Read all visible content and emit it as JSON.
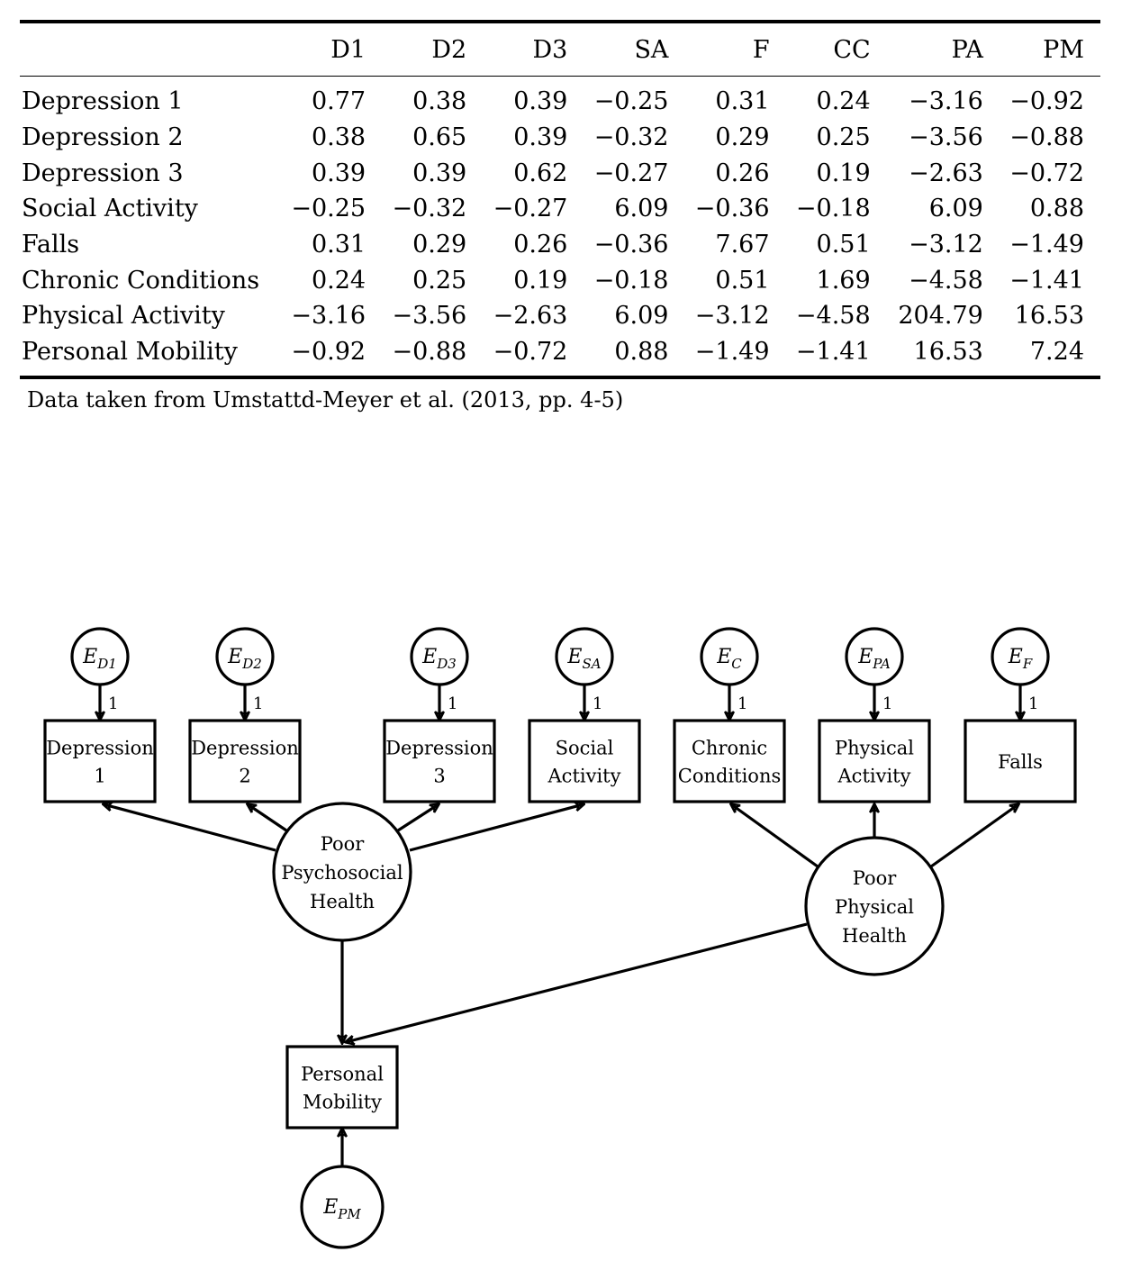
{
  "table": {
    "columns": [
      "D1",
      "D2",
      "D3",
      "SA",
      "F",
      "CC",
      "PA",
      "PM"
    ],
    "rows": [
      {
        "label": "Depression 1",
        "values": [
          "0.77",
          "0.38",
          "0.39",
          "−0.25",
          "0.31",
          "0.24",
          "−3.16",
          "−0.92"
        ]
      },
      {
        "label": "Depression 2",
        "values": [
          "0.38",
          "0.65",
          "0.39",
          "−0.32",
          "0.29",
          "0.25",
          "−3.56",
          "−0.88"
        ]
      },
      {
        "label": "Depression 3",
        "values": [
          "0.39",
          "0.39",
          "0.62",
          "−0.27",
          "0.26",
          "0.19",
          "−2.63",
          "−0.72"
        ]
      },
      {
        "label": "Social Activity",
        "values": [
          "−0.25",
          "−0.32",
          "−0.27",
          "6.09",
          "−0.36",
          "−0.18",
          "6.09",
          "0.88"
        ]
      },
      {
        "label": "Falls",
        "values": [
          "0.31",
          "0.29",
          "0.26",
          "−0.36",
          "7.67",
          "0.51",
          "−3.12",
          "−1.49"
        ]
      },
      {
        "label": "Chronic Conditions",
        "values": [
          "0.24",
          "0.25",
          "0.19",
          "−0.18",
          "0.51",
          "1.69",
          "−4.58",
          "−1.41"
        ]
      },
      {
        "label": "Physical Activity",
        "values": [
          "−3.16",
          "−3.56",
          "−2.63",
          "6.09",
          "−3.12",
          "−4.58",
          "204.79",
          "16.53"
        ]
      },
      {
        "label": "Personal Mobility",
        "values": [
          "−0.92",
          "−0.88",
          "−0.72",
          "0.88",
          "−1.49",
          "−1.41",
          "16.53",
          "7.24"
        ]
      }
    ],
    "caption": "Data taken from Umstattd-Meyer et al. (2013, pp. 4-5)"
  },
  "diagram": {
    "errors": [
      {
        "id": "e-d1",
        "base": "E",
        "sub": "D1"
      },
      {
        "id": "e-d2",
        "base": "E",
        "sub": "D2"
      },
      {
        "id": "e-d3",
        "base": "E",
        "sub": "D3"
      },
      {
        "id": "e-sa",
        "base": "E",
        "sub": "SA"
      },
      {
        "id": "e-c",
        "base": "E",
        "sub": "C"
      },
      {
        "id": "e-pa",
        "base": "E",
        "sub": "PA"
      },
      {
        "id": "e-f",
        "base": "E",
        "sub": "F"
      },
      {
        "id": "e-pm",
        "base": "E",
        "sub": "PM"
      }
    ],
    "loading_label": "1",
    "observed": [
      {
        "id": "depression-1",
        "lines": [
          "Depression",
          "1"
        ]
      },
      {
        "id": "depression-2",
        "lines": [
          "Depression",
          "2"
        ]
      },
      {
        "id": "depression-3",
        "lines": [
          "Depression",
          "3"
        ]
      },
      {
        "id": "social-activity",
        "lines": [
          "Social",
          "Activity"
        ]
      },
      {
        "id": "chronic-conditions",
        "lines": [
          "Chronic",
          "Conditions"
        ]
      },
      {
        "id": "physical-activity",
        "lines": [
          "Physical",
          "Activity"
        ]
      },
      {
        "id": "falls",
        "lines": [
          "Falls"
        ]
      },
      {
        "id": "personal-mobility",
        "lines": [
          "Personal",
          "Mobility"
        ]
      }
    ],
    "latent": [
      {
        "id": "poor-psychosocial-health",
        "lines": [
          "Poor",
          "Psychosocial",
          "Health"
        ]
      },
      {
        "id": "poor-physical-health",
        "lines": [
          "Poor",
          "Physical",
          "Health"
        ]
      }
    ]
  }
}
